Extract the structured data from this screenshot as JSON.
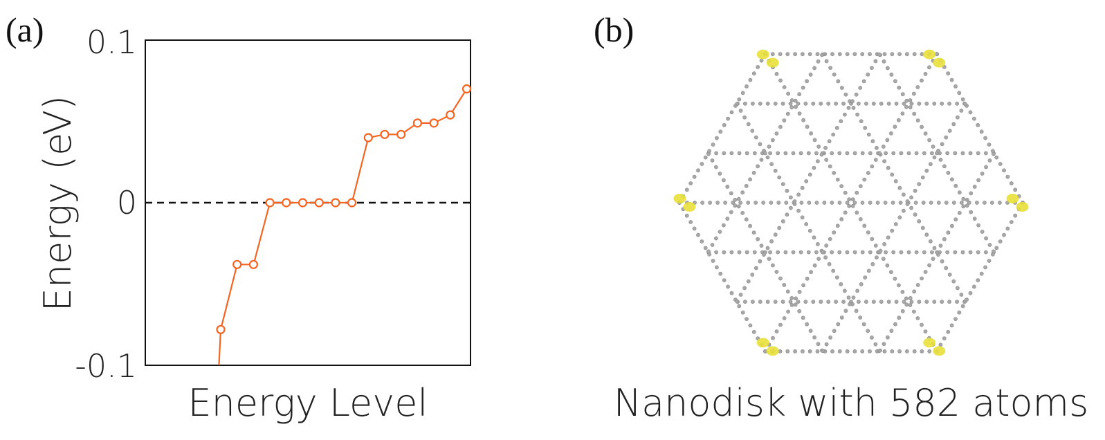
{
  "panels": {
    "a_label": "(a)",
    "b_label": "(b)",
    "b_caption": "Nanodisk with 582 atoms"
  },
  "colors": {
    "series": "#f26522",
    "reference_line": "#111111",
    "atom": "#a8a8a8",
    "edge_state": "#e8e03a"
  },
  "chart_data": {
    "type": "line",
    "title": "",
    "xlabel": "Energy Level",
    "ylabel": "Energy (eV)",
    "ylim": [
      -0.1,
      0.1
    ],
    "yticks": [
      "0.1",
      "0",
      "-0.1"
    ],
    "grid": false,
    "markers": "open-circle",
    "reference_line": {
      "y": 0,
      "style": "dashed"
    },
    "series": [
      {
        "x": [
          1,
          2,
          3,
          4,
          5,
          6,
          7,
          8,
          9,
          10,
          11,
          12,
          13,
          14,
          15,
          16
        ],
        "values": [
          -0.078,
          -0.038,
          -0.038,
          0.0,
          0.0,
          0.0,
          0.0,
          0.0,
          0.0,
          0.04,
          0.042,
          0.042,
          0.049,
          0.049,
          0.054,
          0.07
        ]
      }
    ],
    "line_extends_below_axis": true
  }
}
